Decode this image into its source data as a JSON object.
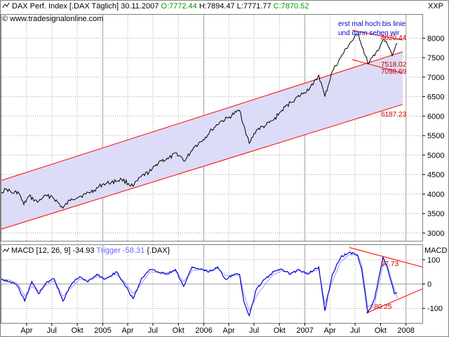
{
  "header": {
    "instrument": "DAX Perf. Index [.DAX  Täglich] 30.11.2007",
    "open": "O:7772.44",
    "high": "H:7894.47",
    "low": "L:7771.77",
    "close": "C:7870.52",
    "site": "www.tradesignalonline.com",
    "axis_label": "XXP"
  },
  "macd_header": {
    "label": "MACD [12, 26, 9]",
    "macd_value": "-34.93",
    "trigger": "Trigger -58.31",
    "symbol": "{.DAX}",
    "axis_label": "MACD"
  },
  "annotations": {
    "note_line1": "erst mal hoch bis linie",
    "note_line2": "und dann sehen wir",
    "level_upper": "8020.44",
    "level_mid1": "7518.02",
    "level_mid2": "7098.69",
    "level_lower": "6187.23",
    "macd_upper": "97.73",
    "macd_lower": "-80.25"
  },
  "colors": {
    "price_line": "#000000",
    "channel_line": "#ff0000",
    "channel_fill": "#dcdcf8",
    "macd_line": "#0000cc",
    "trigger_line": "#9999ff",
    "grid": "#a0a0a0",
    "annotation_red": "#cc0000",
    "annotation_blue": "#0000cc",
    "close_green": "#009900"
  },
  "chart_data": [
    {
      "type": "line",
      "title": "DAX Perf. Index [.DAX  Täglich] 30.11.2007",
      "ylim": [
        2800,
        8600
      ],
      "y_ticks": [
        3000,
        3500,
        4000,
        4500,
        5000,
        5500,
        6000,
        6500,
        7000,
        7500,
        8000
      ],
      "x_tick_labels": [
        "Apr",
        "Jul",
        "Okt",
        "2005",
        "Apr",
        "Jul",
        "Okt",
        "2006",
        "Apr",
        "Jul",
        "Okt",
        "2007",
        "Apr",
        "Jul",
        "Okt",
        "2008"
      ],
      "x_range": [
        "2004-01-01",
        "2008-02-29"
      ],
      "grid": true,
      "series": [
        {
          "values": [
            [
              "2004-01-01",
              4050
            ],
            [
              "2004-01-20",
              4130
            ],
            [
              "2004-02-10",
              4020
            ],
            [
              "2004-03-01",
              4060
            ],
            [
              "2004-03-22",
              3730
            ],
            [
              "2004-04-10",
              3950
            ],
            [
              "2004-05-10",
              3790
            ],
            [
              "2004-06-01",
              3930
            ],
            [
              "2004-07-01",
              3950
            ],
            [
              "2004-08-10",
              3640
            ],
            [
              "2004-09-10",
              3880
            ],
            [
              "2004-10-10",
              3940
            ],
            [
              "2004-11-01",
              4000
            ],
            [
              "2004-12-01",
              4100
            ],
            [
              "2004-12-31",
              4250
            ],
            [
              "2005-02-01",
              4300
            ],
            [
              "2005-03-10",
              4380
            ],
            [
              "2005-04-20",
              4200
            ],
            [
              "2005-05-20",
              4450
            ],
            [
              "2005-06-25",
              4600
            ],
            [
              "2005-07-25",
              4850
            ],
            [
              "2005-08-25",
              4900
            ],
            [
              "2005-09-25",
              5050
            ],
            [
              "2005-10-25",
              4850
            ],
            [
              "2005-11-25",
              5200
            ],
            [
              "2005-12-30",
              5400
            ],
            [
              "2006-01-30",
              5650
            ],
            [
              "2006-02-28",
              5850
            ],
            [
              "2006-03-30",
              5950
            ],
            [
              "2006-04-28",
              6100
            ],
            [
              "2006-05-10",
              6150
            ],
            [
              "2006-05-30",
              5650
            ],
            [
              "2006-06-14",
              5300
            ],
            [
              "2006-07-10",
              5650
            ],
            [
              "2006-08-10",
              5750
            ],
            [
              "2006-09-10",
              5900
            ],
            [
              "2006-10-10",
              6150
            ],
            [
              "2006-11-10",
              6350
            ],
            [
              "2006-12-29",
              6600
            ],
            [
              "2007-01-30",
              6800
            ],
            [
              "2007-02-20",
              7050
            ],
            [
              "2007-03-14",
              6500
            ],
            [
              "2007-04-10",
              7150
            ],
            [
              "2007-05-10",
              7500
            ],
            [
              "2007-06-10",
              7850
            ],
            [
              "2007-07-13",
              8100
            ],
            [
              "2007-08-16",
              7350
            ],
            [
              "2007-09-10",
              7550
            ],
            [
              "2007-10-10",
              7950
            ],
            [
              "2007-10-25",
              7850
            ],
            [
              "2007-11-12",
              7550
            ],
            [
              "2007-11-30",
              7870
            ]
          ]
        }
      ]
    },
    {
      "type": "line",
      "title": "MACD [12, 26, 9]",
      "ylim": [
        -160,
        160
      ],
      "y_ticks": [
        -100,
        0,
        100
      ],
      "x_range": [
        "2004-01-01",
        "2008-02-29"
      ],
      "grid": true,
      "series": [
        {
          "name": "MACD",
          "values": [
            [
              "2004-01-01",
              20
            ],
            [
              "2004-02-01",
              10
            ],
            [
              "2004-03-01",
              -10
            ],
            [
              "2004-03-25",
              -70
            ],
            [
              "2004-04-20",
              10
            ],
            [
              "2004-05-15",
              -40
            ],
            [
              "2004-06-15",
              10
            ],
            [
              "2004-07-10",
              20
            ],
            [
              "2004-08-10",
              -70
            ],
            [
              "2004-09-10",
              0
            ],
            [
              "2004-10-10",
              30
            ],
            [
              "2004-11-10",
              10
            ],
            [
              "2004-12-10",
              40
            ],
            [
              "2005-01-10",
              20
            ],
            [
              "2005-02-20",
              50
            ],
            [
              "2005-03-20",
              0
            ],
            [
              "2005-04-20",
              -60
            ],
            [
              "2005-05-20",
              20
            ],
            [
              "2005-06-20",
              60
            ],
            [
              "2005-07-20",
              50
            ],
            [
              "2005-08-20",
              40
            ],
            [
              "2005-09-20",
              60
            ],
            [
              "2005-10-20",
              -10
            ],
            [
              "2005-11-20",
              70
            ],
            [
              "2005-12-20",
              60
            ],
            [
              "2006-01-20",
              50
            ],
            [
              "2006-02-20",
              70
            ],
            [
              "2006-03-20",
              20
            ],
            [
              "2006-04-20",
              40
            ],
            [
              "2006-05-10",
              40
            ],
            [
              "2006-05-25",
              -70
            ],
            [
              "2006-06-14",
              -130
            ],
            [
              "2006-07-10",
              -20
            ],
            [
              "2006-08-10",
              20
            ],
            [
              "2006-09-10",
              50
            ],
            [
              "2006-10-10",
              60
            ],
            [
              "2006-11-10",
              40
            ],
            [
              "2006-12-10",
              60
            ],
            [
              "2007-01-10",
              40
            ],
            [
              "2007-02-20",
              70
            ],
            [
              "2007-03-14",
              -110
            ],
            [
              "2007-04-10",
              40
            ],
            [
              "2007-05-10",
              110
            ],
            [
              "2007-06-10",
              130
            ],
            [
              "2007-07-10",
              120
            ],
            [
              "2007-07-25",
              60
            ],
            [
              "2007-08-16",
              -120
            ],
            [
              "2007-09-10",
              -60
            ],
            [
              "2007-10-10",
              110
            ],
            [
              "2007-10-25",
              70
            ],
            [
              "2007-11-20",
              -40
            ],
            [
              "2007-11-30",
              -35
            ]
          ]
        },
        {
          "name": "Trigger",
          "values": [
            [
              "2004-01-01",
              20
            ],
            [
              "2004-02-01",
              15
            ],
            [
              "2004-03-01",
              0
            ],
            [
              "2004-03-25",
              -50
            ],
            [
              "2004-04-20",
              -10
            ],
            [
              "2004-05-15",
              -30
            ],
            [
              "2004-06-15",
              0
            ],
            [
              "2004-07-10",
              15
            ],
            [
              "2004-08-10",
              -50
            ],
            [
              "2004-09-10",
              -15
            ],
            [
              "2004-10-10",
              20
            ],
            [
              "2004-11-10",
              15
            ],
            [
              "2004-12-10",
              30
            ],
            [
              "2005-01-10",
              25
            ],
            [
              "2005-02-20",
              40
            ],
            [
              "2005-03-20",
              10
            ],
            [
              "2005-04-20",
              -40
            ],
            [
              "2005-05-20",
              0
            ],
            [
              "2005-06-20",
              50
            ],
            [
              "2005-07-20",
              50
            ],
            [
              "2005-08-20",
              45
            ],
            [
              "2005-09-20",
              55
            ],
            [
              "2005-10-20",
              10
            ],
            [
              "2005-11-20",
              55
            ],
            [
              "2005-12-20",
              60
            ],
            [
              "2006-01-20",
              55
            ],
            [
              "2006-02-20",
              65
            ],
            [
              "2006-03-20",
              35
            ],
            [
              "2006-04-20",
              35
            ],
            [
              "2006-05-10",
              40
            ],
            [
              "2006-05-25",
              -40
            ],
            [
              "2006-06-14",
              -110
            ],
            [
              "2006-07-10",
              -50
            ],
            [
              "2006-08-10",
              0
            ],
            [
              "2006-09-10",
              40
            ],
            [
              "2006-10-10",
              55
            ],
            [
              "2006-11-10",
              45
            ],
            [
              "2006-12-10",
              55
            ],
            [
              "2007-01-10",
              45
            ],
            [
              "2007-02-20",
              60
            ],
            [
              "2007-03-14",
              -80
            ],
            [
              "2007-04-10",
              10
            ],
            [
              "2007-05-10",
              90
            ],
            [
              "2007-06-10",
              120
            ],
            [
              "2007-07-10",
              120
            ],
            [
              "2007-07-25",
              80
            ],
            [
              "2007-08-16",
              -95
            ],
            [
              "2007-09-10",
              -80
            ],
            [
              "2007-10-10",
              80
            ],
            [
              "2007-10-25",
              80
            ],
            [
              "2007-11-20",
              -20
            ],
            [
              "2007-11-30",
              -58
            ]
          ]
        }
      ],
      "x_tick_labels": [
        "Apr",
        "Jul",
        "Okt",
        "2005",
        "Apr",
        "Jul",
        "Okt",
        "2006",
        "Apr",
        "Jul",
        "Okt",
        "2007",
        "Apr",
        "Jul",
        "Okt",
        "2008"
      ]
    }
  ],
  "trendlines": {
    "channel_upper": [
      [
        "2004-01-01",
        4350
      ],
      [
        "2007-12-20",
        7650
      ]
    ],
    "channel_lower": [
      [
        "2004-01-01",
        3100
      ],
      [
        "2007-12-20",
        6300
      ]
    ],
    "top_resistance": [
      [
        "2007-06-20",
        8200
      ],
      [
        "2007-12-20",
        7950
      ]
    ],
    "top_support": [
      [
        "2007-06-20",
        7450
      ],
      [
        "2007-12-20",
        7100
      ]
    ],
    "macd_upper": [
      [
        "2007-06-10",
        150
      ],
      [
        "2008-02-29",
        70
      ]
    ],
    "macd_lower": [
      [
        "2007-08-10",
        -120
      ],
      [
        "2008-02-29",
        -20
      ]
    ]
  }
}
